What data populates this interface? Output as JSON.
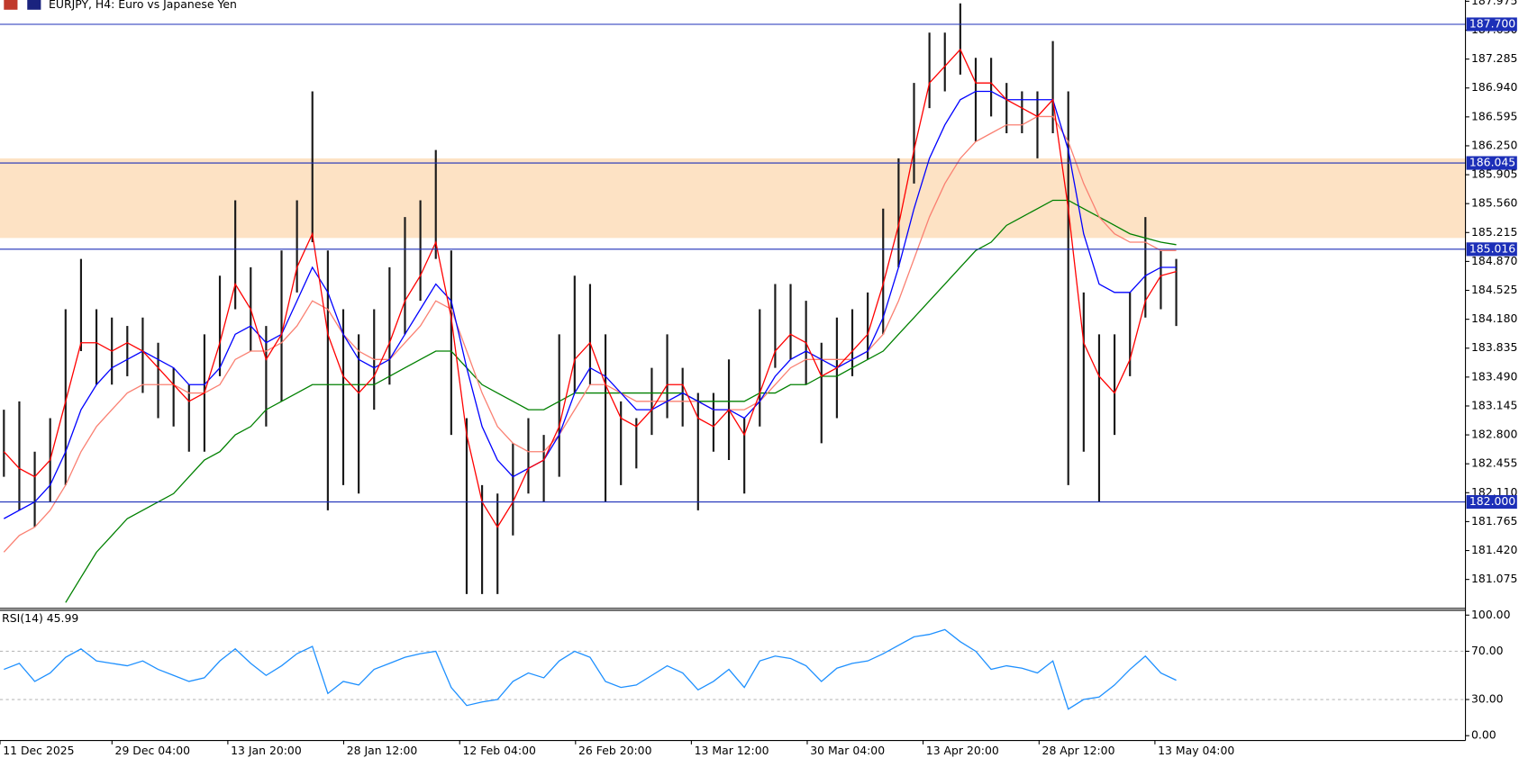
{
  "chart_data": [
    {
      "type": "hilo",
      "title": "EURJPY, H4:  Euro vs Japanese Yen",
      "bar_color": "#1a1a1a",
      "highs": [
        183.1,
        183.2,
        182.6,
        183.0,
        184.3,
        184.9,
        184.3,
        184.2,
        184.1,
        184.2,
        183.9,
        183.6,
        183.4,
        184.0,
        184.7,
        185.6,
        184.8,
        184.1,
        185.0,
        185.6,
        186.9,
        185.0,
        184.3,
        184.0,
        184.3,
        184.8,
        185.4,
        185.6,
        186.2,
        185.0,
        183.0,
        182.2,
        182.1,
        182.7,
        183.0,
        182.8,
        184.0,
        184.7,
        184.6,
        184.0,
        183.2,
        183.0,
        183.6,
        184.0,
        183.6,
        183.3,
        183.3,
        183.7,
        183.0,
        184.3,
        184.6,
        184.6,
        184.4,
        183.9,
        184.2,
        184.3,
        184.5,
        185.5,
        186.1,
        187.0,
        187.6,
        187.6,
        187.95,
        187.3,
        187.3,
        187.0,
        186.9,
        186.9,
        187.5,
        186.9,
        184.5,
        184.0,
        184.0,
        184.5,
        185.4,
        185.0,
        184.9
      ],
      "lows": [
        182.3,
        181.9,
        181.7,
        182.0,
        182.2,
        183.8,
        183.4,
        183.4,
        183.5,
        183.3,
        183.0,
        182.9,
        182.6,
        182.6,
        183.5,
        184.3,
        183.8,
        182.9,
        183.2,
        184.5,
        185.1,
        181.9,
        182.2,
        182.1,
        183.1,
        183.4,
        184.0,
        184.4,
        184.9,
        182.8,
        180.9,
        180.9,
        180.9,
        181.6,
        182.1,
        182.0,
        182.3,
        183.3,
        183.4,
        182.0,
        182.2,
        182.4,
        182.8,
        183.0,
        182.9,
        181.9,
        182.6,
        182.5,
        182.1,
        182.9,
        183.6,
        183.7,
        183.4,
        182.7,
        183.0,
        183.5,
        183.7,
        184.0,
        184.8,
        185.8,
        186.7,
        186.9,
        187.1,
        186.3,
        186.6,
        186.4,
        186.4,
        186.1,
        186.4,
        182.2,
        182.6,
        182.0,
        182.8,
        183.5,
        184.2,
        184.3,
        184.1
      ],
      "overlays": [
        {
          "color": "#008000",
          "values": [
            null,
            null,
            null,
            null,
            180.8,
            181.1,
            181.4,
            181.6,
            181.8,
            181.9,
            182.0,
            182.1,
            182.3,
            182.5,
            182.6,
            182.8,
            182.9,
            183.1,
            183.2,
            183.3,
            183.4,
            183.4,
            183.4,
            183.4,
            183.4,
            183.5,
            183.6,
            183.7,
            183.8,
            183.8,
            183.6,
            183.4,
            183.3,
            183.2,
            183.1,
            183.1,
            183.2,
            183.3,
            183.3,
            183.3,
            183.3,
            183.3,
            183.3,
            183.3,
            183.3,
            183.2,
            183.2,
            183.2,
            183.2,
            183.3,
            183.3,
            183.4,
            183.4,
            183.5,
            183.5,
            183.6,
            183.7,
            183.8,
            184.0,
            184.2,
            184.4,
            184.6,
            184.8,
            185.0,
            185.1,
            185.3,
            185.4,
            185.5,
            185.6,
            185.6,
            185.5,
            185.4,
            185.3,
            185.2,
            185.15,
            185.1,
            185.07
          ]
        },
        {
          "color": "#fa8072",
          "values": [
            181.4,
            181.6,
            181.7,
            181.9,
            182.2,
            182.6,
            182.9,
            183.1,
            183.3,
            183.4,
            183.4,
            183.4,
            183.3,
            183.3,
            183.4,
            183.7,
            183.8,
            183.8,
            183.9,
            184.1,
            184.4,
            184.3,
            184.0,
            183.8,
            183.7,
            183.7,
            183.9,
            184.1,
            184.4,
            184.3,
            183.8,
            183.3,
            182.9,
            182.7,
            182.6,
            182.6,
            182.8,
            183.1,
            183.4,
            183.4,
            183.3,
            183.2,
            183.2,
            183.2,
            183.2,
            183.2,
            183.1,
            183.1,
            183.1,
            183.2,
            183.4,
            183.6,
            183.7,
            183.7,
            183.7,
            183.7,
            183.8,
            184.0,
            184.4,
            184.9,
            185.4,
            185.8,
            186.1,
            186.3,
            186.4,
            186.5,
            186.5,
            186.6,
            186.6,
            186.3,
            185.8,
            185.4,
            185.2,
            185.1,
            185.1,
            185.0,
            185.0
          ]
        },
        {
          "color": "#0000ff",
          "values": [
            181.8,
            181.9,
            182.0,
            182.2,
            182.6,
            183.1,
            183.4,
            183.6,
            183.7,
            183.8,
            183.7,
            183.6,
            183.4,
            183.4,
            183.6,
            184.0,
            184.1,
            183.9,
            184.0,
            184.4,
            184.8,
            184.5,
            184.0,
            183.7,
            183.6,
            183.7,
            184.0,
            184.3,
            184.6,
            184.4,
            183.6,
            182.9,
            182.5,
            182.3,
            182.4,
            182.5,
            182.8,
            183.3,
            183.6,
            183.5,
            183.3,
            183.1,
            183.1,
            183.2,
            183.3,
            183.2,
            183.1,
            183.1,
            183.0,
            183.2,
            183.5,
            183.7,
            183.8,
            183.7,
            183.6,
            183.7,
            183.8,
            184.2,
            184.8,
            185.5,
            186.1,
            186.5,
            186.8,
            186.9,
            186.9,
            186.8,
            186.8,
            186.8,
            186.8,
            186.2,
            185.2,
            184.6,
            184.5,
            184.5,
            184.7,
            184.8,
            184.8
          ]
        },
        {
          "color": "#ff0000",
          "values": [
            182.6,
            182.4,
            182.3,
            182.5,
            183.2,
            183.9,
            183.9,
            183.8,
            183.9,
            183.8,
            183.6,
            183.4,
            183.2,
            183.3,
            183.9,
            184.6,
            184.3,
            183.7,
            184.0,
            184.8,
            185.2,
            184.0,
            183.5,
            183.3,
            183.5,
            183.9,
            184.4,
            184.7,
            185.1,
            184.2,
            182.8,
            182.0,
            181.7,
            182.0,
            182.4,
            182.5,
            182.9,
            183.7,
            183.9,
            183.4,
            183.0,
            182.9,
            183.1,
            183.4,
            183.4,
            183.0,
            182.9,
            183.1,
            182.8,
            183.3,
            183.8,
            184.0,
            183.9,
            183.5,
            183.6,
            183.8,
            184.0,
            184.6,
            185.3,
            186.2,
            187.0,
            187.2,
            187.4,
            187.0,
            187.0,
            186.8,
            186.7,
            186.6,
            186.8,
            185.5,
            183.9,
            183.5,
            183.3,
            183.7,
            184.4,
            184.7,
            184.75
          ]
        }
      ],
      "zone": [
        185.15,
        186.1
      ],
      "zone_color": "#fde2c4",
      "levels": [
        {
          "value": 187.7,
          "label": "187.700"
        },
        {
          "value": 186.045,
          "label": "186.045"
        },
        {
          "value": 185.016,
          "label": "185.016"
        },
        {
          "value": 182.0,
          "label": "182.000"
        }
      ],
      "level_color": "#1c2fb8",
      "xlim": [
        0,
        95
      ],
      "ylim": [
        180.73,
        187.99
      ],
      "yticks": [
        {
          "value": 187.975,
          "label": "187.975"
        },
        {
          "value": 187.63,
          "label": "187.630"
        },
        {
          "value": 187.285,
          "label": "187.285"
        },
        {
          "value": 186.94,
          "label": "186.940"
        },
        {
          "value": 186.595,
          "label": "186.595"
        },
        {
          "value": 186.25,
          "label": "186.250"
        },
        {
          "value": 185.905,
          "label": "185.905"
        },
        {
          "value": 185.56,
          "label": "185.560"
        },
        {
          "value": 185.215,
          "label": "185.215"
        },
        {
          "value": 184.87,
          "label": "184.870"
        },
        {
          "value": 184.525,
          "label": "184.525"
        },
        {
          "value": 184.18,
          "label": "184.180"
        },
        {
          "value": 183.835,
          "label": "183.835"
        },
        {
          "value": 183.49,
          "label": "183.490"
        },
        {
          "value": 183.145,
          "label": "183.145"
        },
        {
          "value": 182.8,
          "label": "182.800"
        },
        {
          "value": 182.455,
          "label": "182.455"
        },
        {
          "value": 182.11,
          "label": "182.110"
        },
        {
          "value": 181.765,
          "label": "181.765"
        },
        {
          "value": 181.42,
          "label": "181.420"
        },
        {
          "value": 181.075,
          "label": "181.075"
        }
      ]
    },
    {
      "type": "line",
      "title": "RSI(14) 45.99",
      "color": "#1e90ff",
      "values": [
        55,
        60,
        45,
        52,
        65,
        72,
        62,
        60,
        58,
        62,
        55,
        50,
        45,
        48,
        62,
        72,
        60,
        50,
        58,
        68,
        74,
        35,
        45,
        42,
        55,
        60,
        65,
        68,
        70,
        40,
        25,
        28,
        30,
        45,
        52,
        48,
        62,
        70,
        65,
        45,
        40,
        42,
        50,
        58,
        52,
        38,
        45,
        55,
        40,
        62,
        66,
        64,
        58,
        45,
        56,
        60,
        62,
        68,
        75,
        82,
        84,
        88,
        78,
        70,
        55,
        58,
        56,
        52,
        62,
        22,
        30,
        32,
        42,
        55,
        66,
        52,
        46
      ],
      "xlim": [
        0,
        95
      ],
      "ylim": [
        -4,
        104
      ],
      "yticks": [
        {
          "value": 100,
          "label": "100.00"
        },
        {
          "value": 70,
          "label": "70.00"
        },
        {
          "value": 30,
          "label": "30.00"
        },
        {
          "value": 0,
          "label": "0.00"
        }
      ],
      "xticks": [
        {
          "value": 0,
          "label": "11 Dec 2025"
        },
        {
          "value": 7.26,
          "label": "29 Dec 04:00"
        },
        {
          "value": 14.77,
          "label": "13 Jan 20:00"
        },
        {
          "value": 22.28,
          "label": "28 Jan 12:00"
        },
        {
          "value": 29.8,
          "label": "12 Feb 04:00"
        },
        {
          "value": 37.31,
          "label": "26 Feb 20:00"
        },
        {
          "value": 44.82,
          "label": "13 Mar 12:00"
        },
        {
          "value": 52.33,
          "label": "30 Mar 04:00"
        },
        {
          "value": 59.84,
          "label": "13 Apr 20:00"
        },
        {
          "value": 67.36,
          "label": "28 Apr 12:00"
        },
        {
          "value": 74.87,
          "label": "13 May 04:00"
        }
      ]
    }
  ]
}
